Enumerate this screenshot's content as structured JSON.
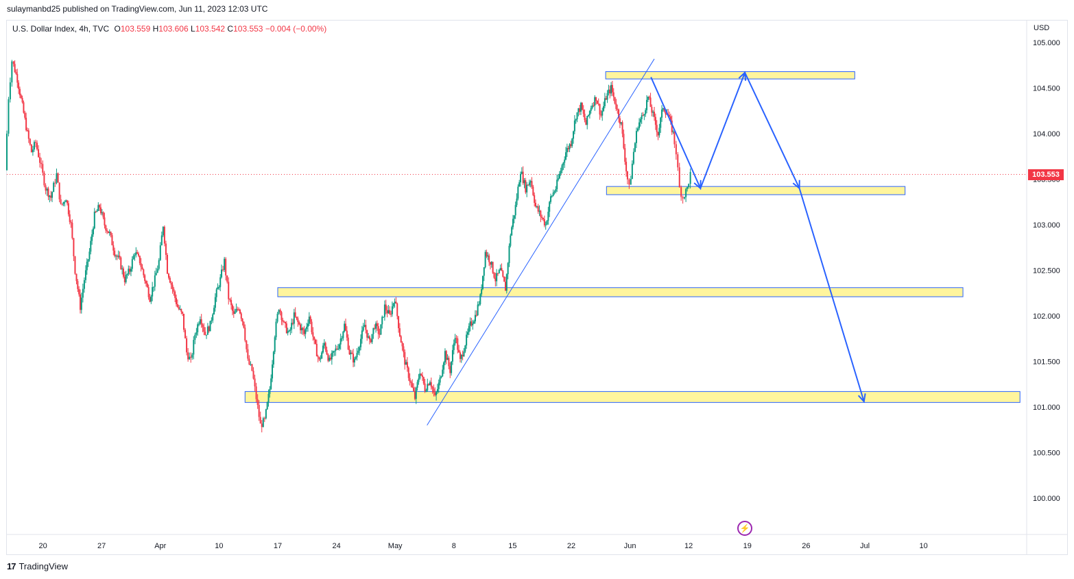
{
  "header": {
    "published": "sulaymanbd25 published on TradingView.com, Jun 11, 2023 12:03 UTC"
  },
  "legend": {
    "symbol": "U.S. Dollar Index, 4h, TVC",
    "o_label": "O",
    "o_value": "103.559",
    "h_label": "H",
    "h_value": "103.606",
    "l_label": "L",
    "l_value": "103.542",
    "c_label": "C",
    "c_value": "103.553",
    "change": "−0.004 (−0.00%)"
  },
  "currency": "USD",
  "last_price": "103.553",
  "footer": {
    "brand": "TradingView",
    "logo": "tradingview-logo-icon"
  },
  "colors": {
    "up": "#089981",
    "down": "#f23645",
    "zone_fill": "#fff59d",
    "zone_border": "#2962ff",
    "drawing": "#2962ff",
    "last_price": "#f23645"
  },
  "chart_data": {
    "type": "candlestick",
    "title": "U.S. Dollar Index, 4h, TVC",
    "ylim": [
      99.6,
      105.2
    ],
    "y_ticks": [
      "105.000",
      "104.500",
      "104.000",
      "103.500",
      "103.000",
      "102.500",
      "102.000",
      "101.500",
      "101.000",
      "100.500",
      "100.000"
    ],
    "x_ticks": [
      "20",
      "27",
      "Apr",
      "10",
      "17",
      "24",
      "May",
      "8",
      "15",
      "22",
      "Jun",
      "12",
      "19",
      "26",
      "Jul",
      "10"
    ],
    "x_tick_positions": [
      0.7,
      7.7,
      14.7,
      21.7,
      28.7,
      35.7,
      42.7,
      49.7,
      56.7,
      63.7,
      70.7,
      77.7,
      84.7,
      91.7,
      98.7,
      105.7
    ],
    "x_range": [
      -3.6,
      118.0
    ],
    "last_price": 103.553,
    "series": [
      {
        "name": "U.S. Dollar Index",
        "kind": "close_path",
        "points": [
          [
            -3.6,
            103.6
          ],
          [
            -3.2,
            104.4
          ],
          [
            -2.8,
            104.8
          ],
          [
            -2.2,
            104.6
          ],
          [
            -1.6,
            104.3
          ],
          [
            -1,
            104.0
          ],
          [
            -0.5,
            103.8
          ],
          [
            0,
            103.9
          ],
          [
            0.5,
            103.7
          ],
          [
            1.2,
            103.4
          ],
          [
            1.8,
            103.3
          ],
          [
            2.5,
            103.55
          ],
          [
            3,
            103.2
          ],
          [
            3.6,
            103.3
          ],
          [
            4.2,
            103.0
          ],
          [
            4.7,
            102.5
          ],
          [
            5.3,
            102.1
          ],
          [
            5.8,
            102.4
          ],
          [
            6.4,
            102.7
          ],
          [
            7,
            103.1
          ],
          [
            7.6,
            103.2
          ],
          [
            8.2,
            103.0
          ],
          [
            8.8,
            102.9
          ],
          [
            9.4,
            102.7
          ],
          [
            10,
            102.6
          ],
          [
            10.6,
            102.4
          ],
          [
            11.2,
            102.5
          ],
          [
            11.8,
            102.7
          ],
          [
            12.4,
            102.6
          ],
          [
            13,
            102.4
          ],
          [
            13.6,
            102.2
          ],
          [
            14.2,
            102.4
          ],
          [
            14.7,
            102.6
          ],
          [
            15.2,
            103.0
          ],
          [
            15.7,
            102.5
          ],
          [
            16.3,
            102.3
          ],
          [
            16.9,
            102.1
          ],
          [
            17.5,
            102.0
          ],
          [
            18,
            101.6
          ],
          [
            18.5,
            101.5
          ],
          [
            19,
            101.8
          ],
          [
            19.6,
            102.0
          ],
          [
            20.2,
            101.8
          ],
          [
            20.8,
            101.9
          ],
          [
            21.4,
            102.2
          ],
          [
            22,
            102.4
          ],
          [
            22.5,
            102.6
          ],
          [
            23,
            102.2
          ],
          [
            23.6,
            102.0
          ],
          [
            24.2,
            102.1
          ],
          [
            24.8,
            101.9
          ],
          [
            25.3,
            101.5
          ],
          [
            25.8,
            101.4
          ],
          [
            26.3,
            101.1
          ],
          [
            26.8,
            100.8
          ],
          [
            27.3,
            100.85
          ],
          [
            27.9,
            101.2
          ],
          [
            28.5,
            101.8
          ],
          [
            29,
            102.1
          ],
          [
            29.6,
            101.9
          ],
          [
            30.2,
            101.8
          ],
          [
            30.8,
            102.0
          ],
          [
            31.4,
            101.9
          ],
          [
            32,
            101.8
          ],
          [
            32.6,
            102.0
          ],
          [
            33.2,
            101.7
          ],
          [
            33.8,
            101.5
          ],
          [
            34.4,
            101.7
          ],
          [
            35,
            101.5
          ],
          [
            35.6,
            101.6
          ],
          [
            36.2,
            101.7
          ],
          [
            36.8,
            101.9
          ],
          [
            37.4,
            101.6
          ],
          [
            38,
            101.5
          ],
          [
            38.6,
            101.7
          ],
          [
            39.2,
            101.9
          ],
          [
            39.8,
            101.7
          ],
          [
            40.4,
            101.9
          ],
          [
            41,
            101.8
          ],
          [
            41.6,
            102.1
          ],
          [
            42.2,
            102.0
          ],
          [
            42.8,
            102.2
          ],
          [
            43.4,
            101.8
          ],
          [
            44,
            101.5
          ],
          [
            44.6,
            101.3
          ],
          [
            45.2,
            101.1
          ],
          [
            45.8,
            101.4
          ],
          [
            46.4,
            101.2
          ],
          [
            47,
            101.3
          ],
          [
            47.6,
            101.1
          ],
          [
            48.2,
            101.3
          ],
          [
            48.8,
            101.6
          ],
          [
            49.4,
            101.4
          ],
          [
            50,
            101.8
          ],
          [
            50.6,
            101.5
          ],
          [
            51.2,
            101.7
          ],
          [
            51.8,
            101.9
          ],
          [
            52.4,
            102.0
          ],
          [
            53,
            102.2
          ],
          [
            53.6,
            102.7
          ],
          [
            54.2,
            102.6
          ],
          [
            54.8,
            102.4
          ],
          [
            55.4,
            102.5
          ],
          [
            56,
            102.3
          ],
          [
            56.6,
            102.9
          ],
          [
            57.2,
            103.2
          ],
          [
            57.8,
            103.6
          ],
          [
            58.4,
            103.4
          ],
          [
            59,
            103.5
          ],
          [
            59.6,
            103.2
          ],
          [
            60.2,
            103.1
          ],
          [
            60.8,
            103.0
          ],
          [
            61.4,
            103.3
          ],
          [
            62,
            103.4
          ],
          [
            62.6,
            103.6
          ],
          [
            63.2,
            103.8
          ],
          [
            63.8,
            103.9
          ],
          [
            64.4,
            104.2
          ],
          [
            65,
            104.3
          ],
          [
            65.6,
            104.1
          ],
          [
            66.2,
            104.3
          ],
          [
            66.8,
            104.4
          ],
          [
            67.4,
            104.2
          ],
          [
            68,
            104.4
          ],
          [
            68.6,
            104.5
          ],
          [
            69.2,
            104.3
          ],
          [
            69.8,
            104.1
          ],
          [
            70.4,
            103.6
          ],
          [
            70.8,
            103.4
          ],
          [
            71.3,
            103.8
          ],
          [
            71.8,
            104.1
          ],
          [
            72.4,
            104.2
          ],
          [
            73,
            104.4
          ],
          [
            73.6,
            104.2
          ],
          [
            74.2,
            104.0
          ],
          [
            74.8,
            104.3
          ],
          [
            75.4,
            104.2
          ],
          [
            76,
            104.0
          ],
          [
            76.4,
            103.8
          ],
          [
            76.8,
            103.4
          ],
          [
            77.2,
            103.3
          ],
          [
            77.7,
            103.4
          ],
          [
            78.1,
            103.553
          ]
        ]
      }
    ],
    "zones": [
      {
        "from": 67.8,
        "to": 97.5,
        "low": 104.6,
        "high": 104.68
      },
      {
        "from": 67.9,
        "to": 103.5,
        "low": 103.33,
        "high": 103.42
      },
      {
        "from": 28.7,
        "to": 110.4,
        "low": 102.21,
        "high": 102.31
      },
      {
        "from": 24.8,
        "to": 117.2,
        "low": 101.05,
        "high": 101.17
      }
    ],
    "trendline": [
      [
        46.5,
        100.8
      ],
      [
        73.6,
        104.82
      ]
    ],
    "projection": [
      [
        73.2,
        104.62
      ],
      [
        79.1,
        103.4
      ],
      [
        84.4,
        104.67
      ],
      [
        90.9,
        103.4
      ],
      [
        98.6,
        101.06
      ]
    ]
  }
}
